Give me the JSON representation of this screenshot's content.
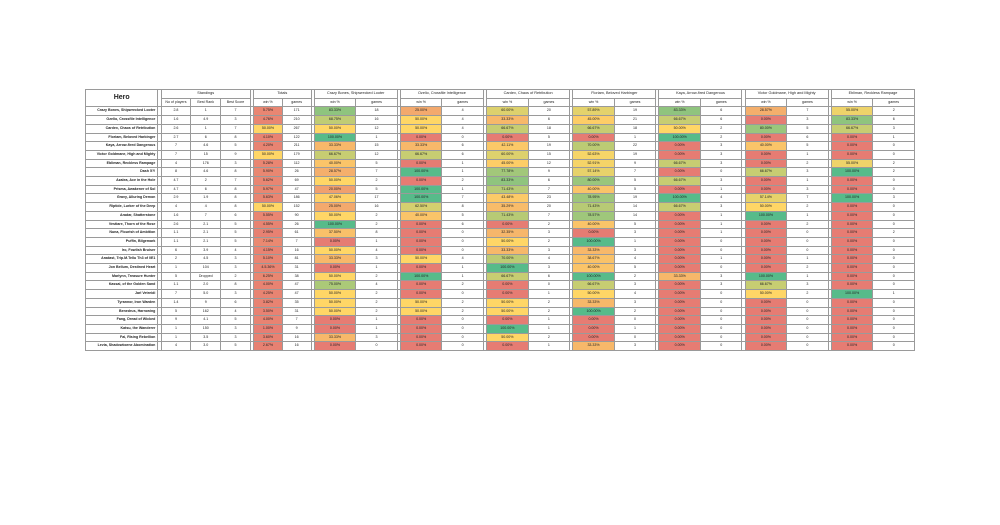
{
  "title": "Hero",
  "standings_header": "Standings",
  "totals_header": "Totals",
  "standings_cols": [
    "No of players",
    "Best Rank",
    "Best Score"
  ],
  "stat_cols": [
    "win %",
    "games"
  ],
  "groups": [
    "Crazy Bones, Shipwrecked Looter",
    "Ozelio, Crossfile Intelligence",
    "Cardex, Chaos of Retribution",
    "Floriam, Beloved Harbinger",
    "Kaya, Arrow-fired Dangerous",
    "Victor Goldmane, High and Mighty",
    "Ebliman, Reckless Rampage"
  ],
  "heroes": [
    "Crazy Bones, Shipwrecked Looter",
    "Ozelio, Crossfile Intelligence",
    "Cardex, Chaos of Retribution",
    "Floriam, Beloved Harbinger",
    "Kaya, Arrow-fired Dangerous",
    "Victor Goldmane, High and Mighty",
    "Ebliman, Reckless Rampage",
    "Dash 5?!",
    "Azalea, Ace in the Hole",
    "Prisma, Awakener of Sol",
    "Gravy, Alluring Demon",
    "Riptide, Lurker of the Deep",
    "Aradar, Shatterstone",
    "Vestiare, Thorn of the Rose",
    "Nuna, Flourish of Ambition",
    "Puffin, Bilgemark",
    "Iro, Fowlish Bruiser",
    "Aradast, Trip.M.Tellu Th3 of 0E1",
    "Jon Bellum, Destined Heart",
    "Marlynn, Treasure Hunter",
    "Kassai, of the Golden Sand",
    "Jarl Vetreidi",
    "Tyrannor, Iron Warden",
    "Benedrus, Harrowing",
    "Fang, Dread of Wicked",
    "Katsu, the Wanderer",
    "Fai, Rising Rebellion",
    "Levia, Shadowborne Abomination"
  ],
  "rows": [
    [
      "2.8",
      "1",
      "7",
      "5.75%",
      "171",
      "83.33%",
      "18",
      "25.00%",
      "4",
      "60.00%",
      "20",
      "57.89%",
      "19",
      "83.33%",
      "6",
      "28.57%",
      "7",
      "55.00%",
      "2"
    ],
    [
      "1.6",
      "4.9",
      "3",
      "4.76%",
      "210",
      "68.75%",
      "16",
      "50.00%",
      "4",
      "33.33%",
      "6",
      "45.00%",
      "21",
      "66.67%",
      "6",
      "0.00%",
      "3",
      "83.33%",
      "6"
    ],
    [
      "2.6",
      "1",
      "7",
      "50.00%",
      "267",
      "50.00%",
      "12",
      "50.00%",
      "4",
      "66.67%",
      "18",
      "66.67%",
      "18",
      "50.00%",
      "2",
      "80.00%",
      "5",
      "66.67%",
      "3"
    ],
    [
      "2.7",
      "6",
      "8",
      "4.10%",
      "122",
      "100.00%",
      "1",
      "0.00%",
      "0",
      "0.00%",
      "5",
      "0.00%",
      "1",
      "100.00%",
      "2",
      "0.00%",
      "6",
      "0.00%",
      "1"
    ],
    [
      "7",
      "4.6",
      "5",
      "4.20%",
      "211",
      "33.33%",
      "15",
      "33.33%",
      "6",
      "42.11%",
      "19",
      "70.00%",
      "22",
      "0.00%",
      "3",
      "40.00%",
      "5",
      "0.00%",
      "0"
    ],
    [
      "7",
      "15",
      "9",
      "50.00%",
      "179",
      "66.67%",
      "12",
      "66.67%",
      "6",
      "60.00%",
      "15",
      "52.63%",
      "19",
      "0.00%",
      "3",
      "0.00%",
      "1",
      "0.00%",
      "0"
    ],
    [
      "4",
      "176",
      "3",
      "5.28%",
      "112",
      "40.00%",
      "5",
      "0.00%",
      "1",
      "45.00%",
      "12",
      "52.91%",
      "9",
      "66.67%",
      "3",
      "0.00%",
      "2",
      "55.00%",
      "2"
    ],
    [
      "8",
      "4.6",
      "8",
      "5.90%",
      "26",
      "28.57%",
      "7",
      "100.00%",
      "1",
      "77.78%",
      "9",
      "57.14%",
      "7",
      "0.00%",
      "0",
      "66.67%",
      "3",
      "100.00%",
      "2"
    ],
    [
      "4.7",
      "2",
      "7",
      "5.62%",
      "69",
      "50.00%",
      "2",
      "0.00%",
      "2",
      "83.33%",
      "6",
      "80.00%",
      "5",
      "66.67%",
      "3",
      "0.00%",
      "1",
      "0.00%",
      "0"
    ],
    [
      "4.7",
      "6",
      "8",
      "5.97%",
      "47",
      "20.00%",
      "5",
      "100.00%",
      "1",
      "71.43%",
      "7",
      "40.00%",
      "5",
      "0.00%",
      "1",
      "0.00%",
      "3",
      "0.00%",
      "0"
    ],
    [
      "2.9",
      "1.9",
      "8",
      "5.63%",
      "186",
      "47.06%",
      "17",
      "100.00%",
      "7",
      "43.48%",
      "23",
      "78.95%",
      "19",
      "100.00%",
      "4",
      "57.14%",
      "7",
      "100.00%",
      "3"
    ],
    [
      "4",
      "4",
      "8",
      "50.00%",
      "152",
      "25.00%",
      "16",
      "62.50%",
      "8",
      "35.29%",
      "20",
      "71.43%",
      "14",
      "66.67%",
      "3",
      "50.00%",
      "2",
      "0.00%",
      "0"
    ],
    [
      "1.6",
      "7",
      "6",
      "5.55%",
      "90",
      "50.00%",
      "2",
      "40.00%",
      "5",
      "71.43%",
      "7",
      "78.57%",
      "14",
      "0.00%",
      "1",
      "100.00%",
      "1",
      "0.00%",
      "0"
    ],
    [
      "2.6",
      "2.1",
      "5",
      "4.55%",
      "26",
      "100.00%",
      "2",
      "0.00%",
      "6",
      "0.00%",
      "2",
      "40.00%",
      "5",
      "0.00%",
      "1",
      "0.00%",
      "2",
      "0.00%",
      "0"
    ],
    [
      "1.1",
      "2.1",
      "5",
      "2.95%",
      "61",
      "37.50%",
      "8",
      "0.00%",
      "0",
      "32.35%",
      "3",
      "0.00%",
      "3",
      "0.00%",
      "1",
      "0.00%",
      "0",
      "0.00%",
      "2"
    ],
    [
      "1.1",
      "2.1",
      "5",
      "7.14%",
      "7",
      "0.00%",
      "1",
      "0.00%",
      "0",
      "50.00%",
      "2",
      "100.00%",
      "1",
      "0.00%",
      "0",
      "0.00%",
      "0",
      "0.00%",
      "0"
    ],
    [
      "6",
      "3.9",
      "4",
      "4.15%",
      "16",
      "50.00%",
      "4",
      "0.00%",
      "0",
      "33.33%",
      "3",
      "33.33%",
      "3",
      "0.00%",
      "0",
      "0.00%",
      "0",
      "0.00%",
      "0"
    ],
    [
      "2",
      "4.5",
      "3",
      "5.10%",
      "81",
      "33.33%",
      "3",
      "50.00%",
      "4",
      "70.00%",
      "4",
      "38.67%",
      "4",
      "0.00%",
      "1",
      "0.00%",
      "1",
      "0.00%",
      "0"
    ],
    [
      "1",
      "104",
      "3",
      "4.5.36%",
      "31",
      "0.00%",
      "1",
      "0.00%",
      "1",
      "100.00%",
      "3",
      "40.00%",
      "5",
      "0.00%",
      "0",
      "0.00%",
      "2",
      "0.00%",
      "0"
    ],
    [
      "5",
      "Dropped",
      "2",
      "6.25%",
      "38",
      "50.00%",
      "2",
      "100.00%",
      "1",
      "66.67%",
      "6",
      "100.00%",
      "2",
      "33.33%",
      "3",
      "100.00%",
      "1",
      "0.00%",
      "0"
    ],
    [
      "1.1",
      "2.0",
      "8",
      "4.00%",
      "47",
      "75.00%",
      "4",
      "0.00%",
      "2",
      "0.00%",
      "0",
      "66.67%",
      "3",
      "0.00%",
      "3",
      "66.67%",
      "3",
      "0.00%",
      "0"
    ],
    [
      "7",
      "5.0",
      "3",
      "4.25%",
      "47",
      "50.00%",
      "2",
      "0.00%",
      "0",
      "0.00%",
      "1",
      "50.00%",
      "4",
      "0.00%",
      "0",
      "50.00%",
      "2",
      "100.00%",
      "1"
    ],
    [
      "1.4",
      "9",
      "6",
      "3.82%",
      "35",
      "50.00%",
      "2",
      "50.00%",
      "2",
      "50.00%",
      "2",
      "33.33%",
      "3",
      "0.00%",
      "0",
      "0.00%",
      "0",
      "0.00%",
      "0"
    ],
    [
      "5",
      "162",
      "4",
      "3.50%",
      "31",
      "50.00%",
      "2",
      "50.00%",
      "2",
      "50.00%",
      "2",
      "100.00%",
      "2",
      "0.00%",
      "0",
      "0.00%",
      "0",
      "0.00%",
      "0"
    ],
    [
      "9",
      "4.1",
      "5",
      "4.00%",
      "7",
      "0.00%",
      "1",
      "0.00%",
      "0",
      "0.00%",
      "1",
      "0.00%",
      "0",
      "0.00%",
      "0",
      "0.00%",
      "0",
      "0.00%",
      "0"
    ],
    [
      "1",
      "150",
      "3",
      "1.00%",
      "9",
      "0.00%",
      "1",
      "0.00%",
      "0",
      "100.00%",
      "1",
      "0.00%",
      "1",
      "0.00%",
      "0",
      "0.00%",
      "0",
      "0.00%",
      "0"
    ],
    [
      "1",
      "3.5",
      "3",
      "3.60%",
      "16",
      "33.33%",
      "3",
      "0.00%",
      "0",
      "50.00%",
      "2",
      "0.00%",
      "0",
      "0.00%",
      "0",
      "0.00%",
      "0",
      "0.00%",
      "0"
    ],
    [
      "4",
      "3.0",
      "5",
      "2.67%",
      "16",
      "0.00%",
      "0",
      "0.00%",
      "0",
      "0.00%",
      "1",
      "33.33%",
      "3",
      "0.00%",
      "0",
      "0.00%",
      "0",
      "0.00%",
      "0"
    ]
  ]
}
